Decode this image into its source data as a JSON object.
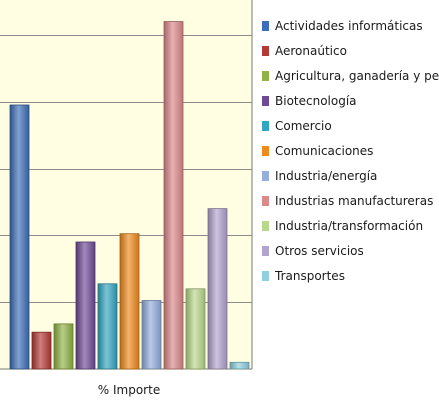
{
  "chart_data": {
    "type": "bar",
    "categories": [
      "% Importe"
    ],
    "ylim": [
      0,
      12
    ],
    "grid": true,
    "legend_position": "right",
    "series": [
      {
        "name": "Actividades  informáticas",
        "values": [
          7.9
        ],
        "color": "#3d6fb8"
      },
      {
        "name": "Aeronaútico",
        "values": [
          1.1
        ],
        "color": "#b33a36"
      },
      {
        "name": "Agricultura,  ganadería  y  pesca",
        "values": [
          1.35
        ],
        "color": "#8fb345"
      },
      {
        "name": "Biotecnología",
        "values": [
          3.8
        ],
        "color": "#6f4b96"
      },
      {
        "name": "Comercio",
        "values": [
          2.55
        ],
        "color": "#33a6c2"
      },
      {
        "name": "Comunicaciones",
        "values": [
          4.05
        ],
        "color": "#ef8a1d"
      },
      {
        "name": "Industria/energía",
        "values": [
          2.05
        ],
        "color": "#94aede"
      },
      {
        "name": "Industrias  manufactureras",
        "values": [
          10.4
        ],
        "color": "#dc898a"
      },
      {
        "name": "Industria/transformación",
        "values": [
          2.4
        ],
        "color": "#b9d88c"
      },
      {
        "name": "Otros servicios",
        "values": [
          4.8
        ],
        "color": "#b3a3cf"
      },
      {
        "name": "Transportes",
        "values": [
          0.2
        ],
        "color": "#8fd0e0"
      }
    ]
  }
}
